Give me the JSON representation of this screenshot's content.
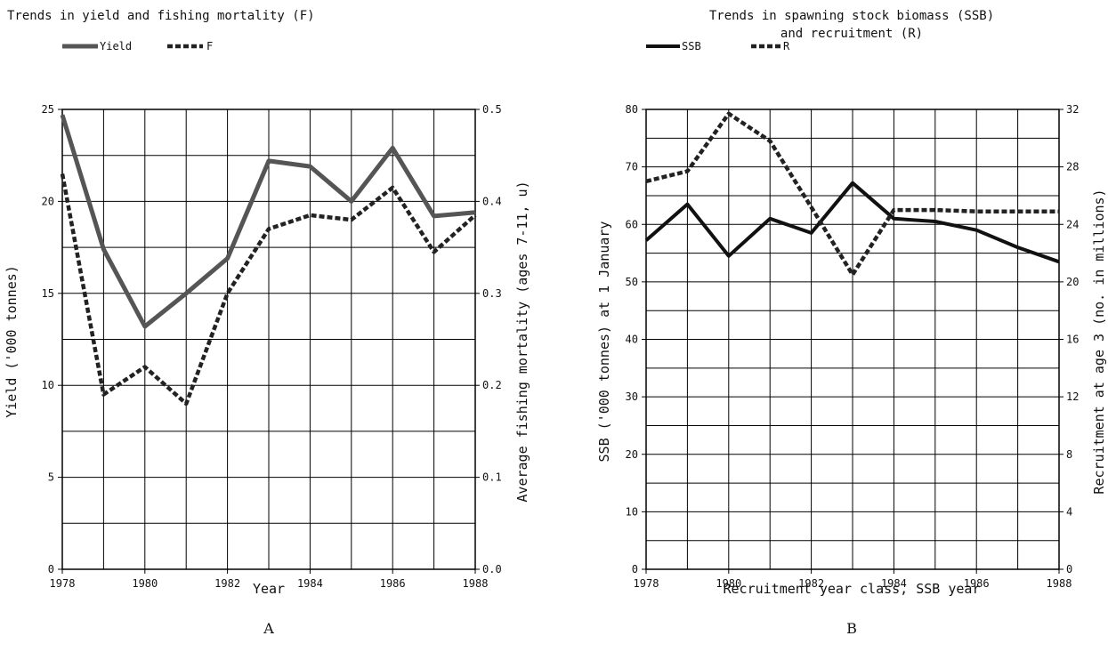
{
  "chart_data": [
    {
      "type": "line",
      "title": "Trends in yield and fishing mortality (F)",
      "panel_label": "A",
      "xlabel": "Year",
      "ylabel": "Yield ('000 tonnes)",
      "y2label": "Average fishing mortality (ages 7-11, u)",
      "x": [
        1978,
        1979,
        1980,
        1981,
        1982,
        1983,
        1984,
        1985,
        1986,
        1987,
        1988
      ],
      "xlim": [
        1978,
        1988
      ],
      "x_ticks": [
        "1978",
        "1980",
        "1982",
        "1984",
        "1986",
        "1988"
      ],
      "ylim": [
        0,
        25
      ],
      "y_ticks": [
        "0",
        "5",
        "10",
        "15",
        "20",
        "25"
      ],
      "y2lim": [
        0,
        0.5
      ],
      "y2_ticks": [
        "0.0",
        "0.1",
        "0.2",
        "0.3",
        "0.4",
        "0.5"
      ],
      "grid": true,
      "legend_position": "top-left",
      "series": [
        {
          "name": "Yield",
          "axis": "left",
          "style": "solid-gray",
          "values": [
            24.7,
            17.4,
            13.2,
            15.0,
            16.9,
            22.2,
            21.9,
            20.0,
            22.9,
            19.2,
            19.4
          ]
        },
        {
          "name": "F",
          "axis": "right",
          "style": "dashed",
          "values": [
            0.43,
            0.19,
            0.22,
            0.18,
            0.3,
            0.37,
            0.385,
            0.38,
            0.415,
            0.345,
            0.385
          ]
        }
      ]
    },
    {
      "type": "line",
      "title": "Trends in spawning stock biomass (SSB)",
      "subtitle": "and recruitment (R)",
      "panel_label": "B",
      "xlabel": "Recruitment year class, SSB year",
      "ylabel": "SSB ('000 tonnes) at 1 January",
      "y2label": "Recruitment at age 3 (no. in millions)",
      "x": [
        1978,
        1979,
        1980,
        1981,
        1982,
        1983,
        1984,
        1985,
        1986,
        1987,
        1988
      ],
      "xlim": [
        1978,
        1988
      ],
      "x_ticks": [
        "1978",
        "1980",
        "1982",
        "1984",
        "1986",
        "1988"
      ],
      "ylim": [
        0,
        80
      ],
      "y_ticks": [
        "0",
        "10",
        "20",
        "30",
        "40",
        "50",
        "60",
        "70",
        "80"
      ],
      "y2lim": [
        0,
        32
      ],
      "y2_ticks": [
        "0",
        "4",
        "8",
        "12",
        "16",
        "20",
        "24",
        "28",
        "32"
      ],
      "grid": true,
      "legend_position": "top-left",
      "series": [
        {
          "name": "SSB",
          "axis": "left",
          "style": "solid-black",
          "values": [
            57.2,
            63.5,
            54.5,
            61.0,
            58.5,
            67.2,
            61.0,
            60.5,
            59.0,
            56.0,
            53.5
          ]
        },
        {
          "name": "R",
          "axis": "right",
          "style": "dashed",
          "values": [
            27.0,
            27.7,
            31.7,
            29.8,
            25.2,
            20.5,
            25.0,
            25.0,
            24.9,
            24.9,
            24.9
          ]
        }
      ]
    }
  ]
}
